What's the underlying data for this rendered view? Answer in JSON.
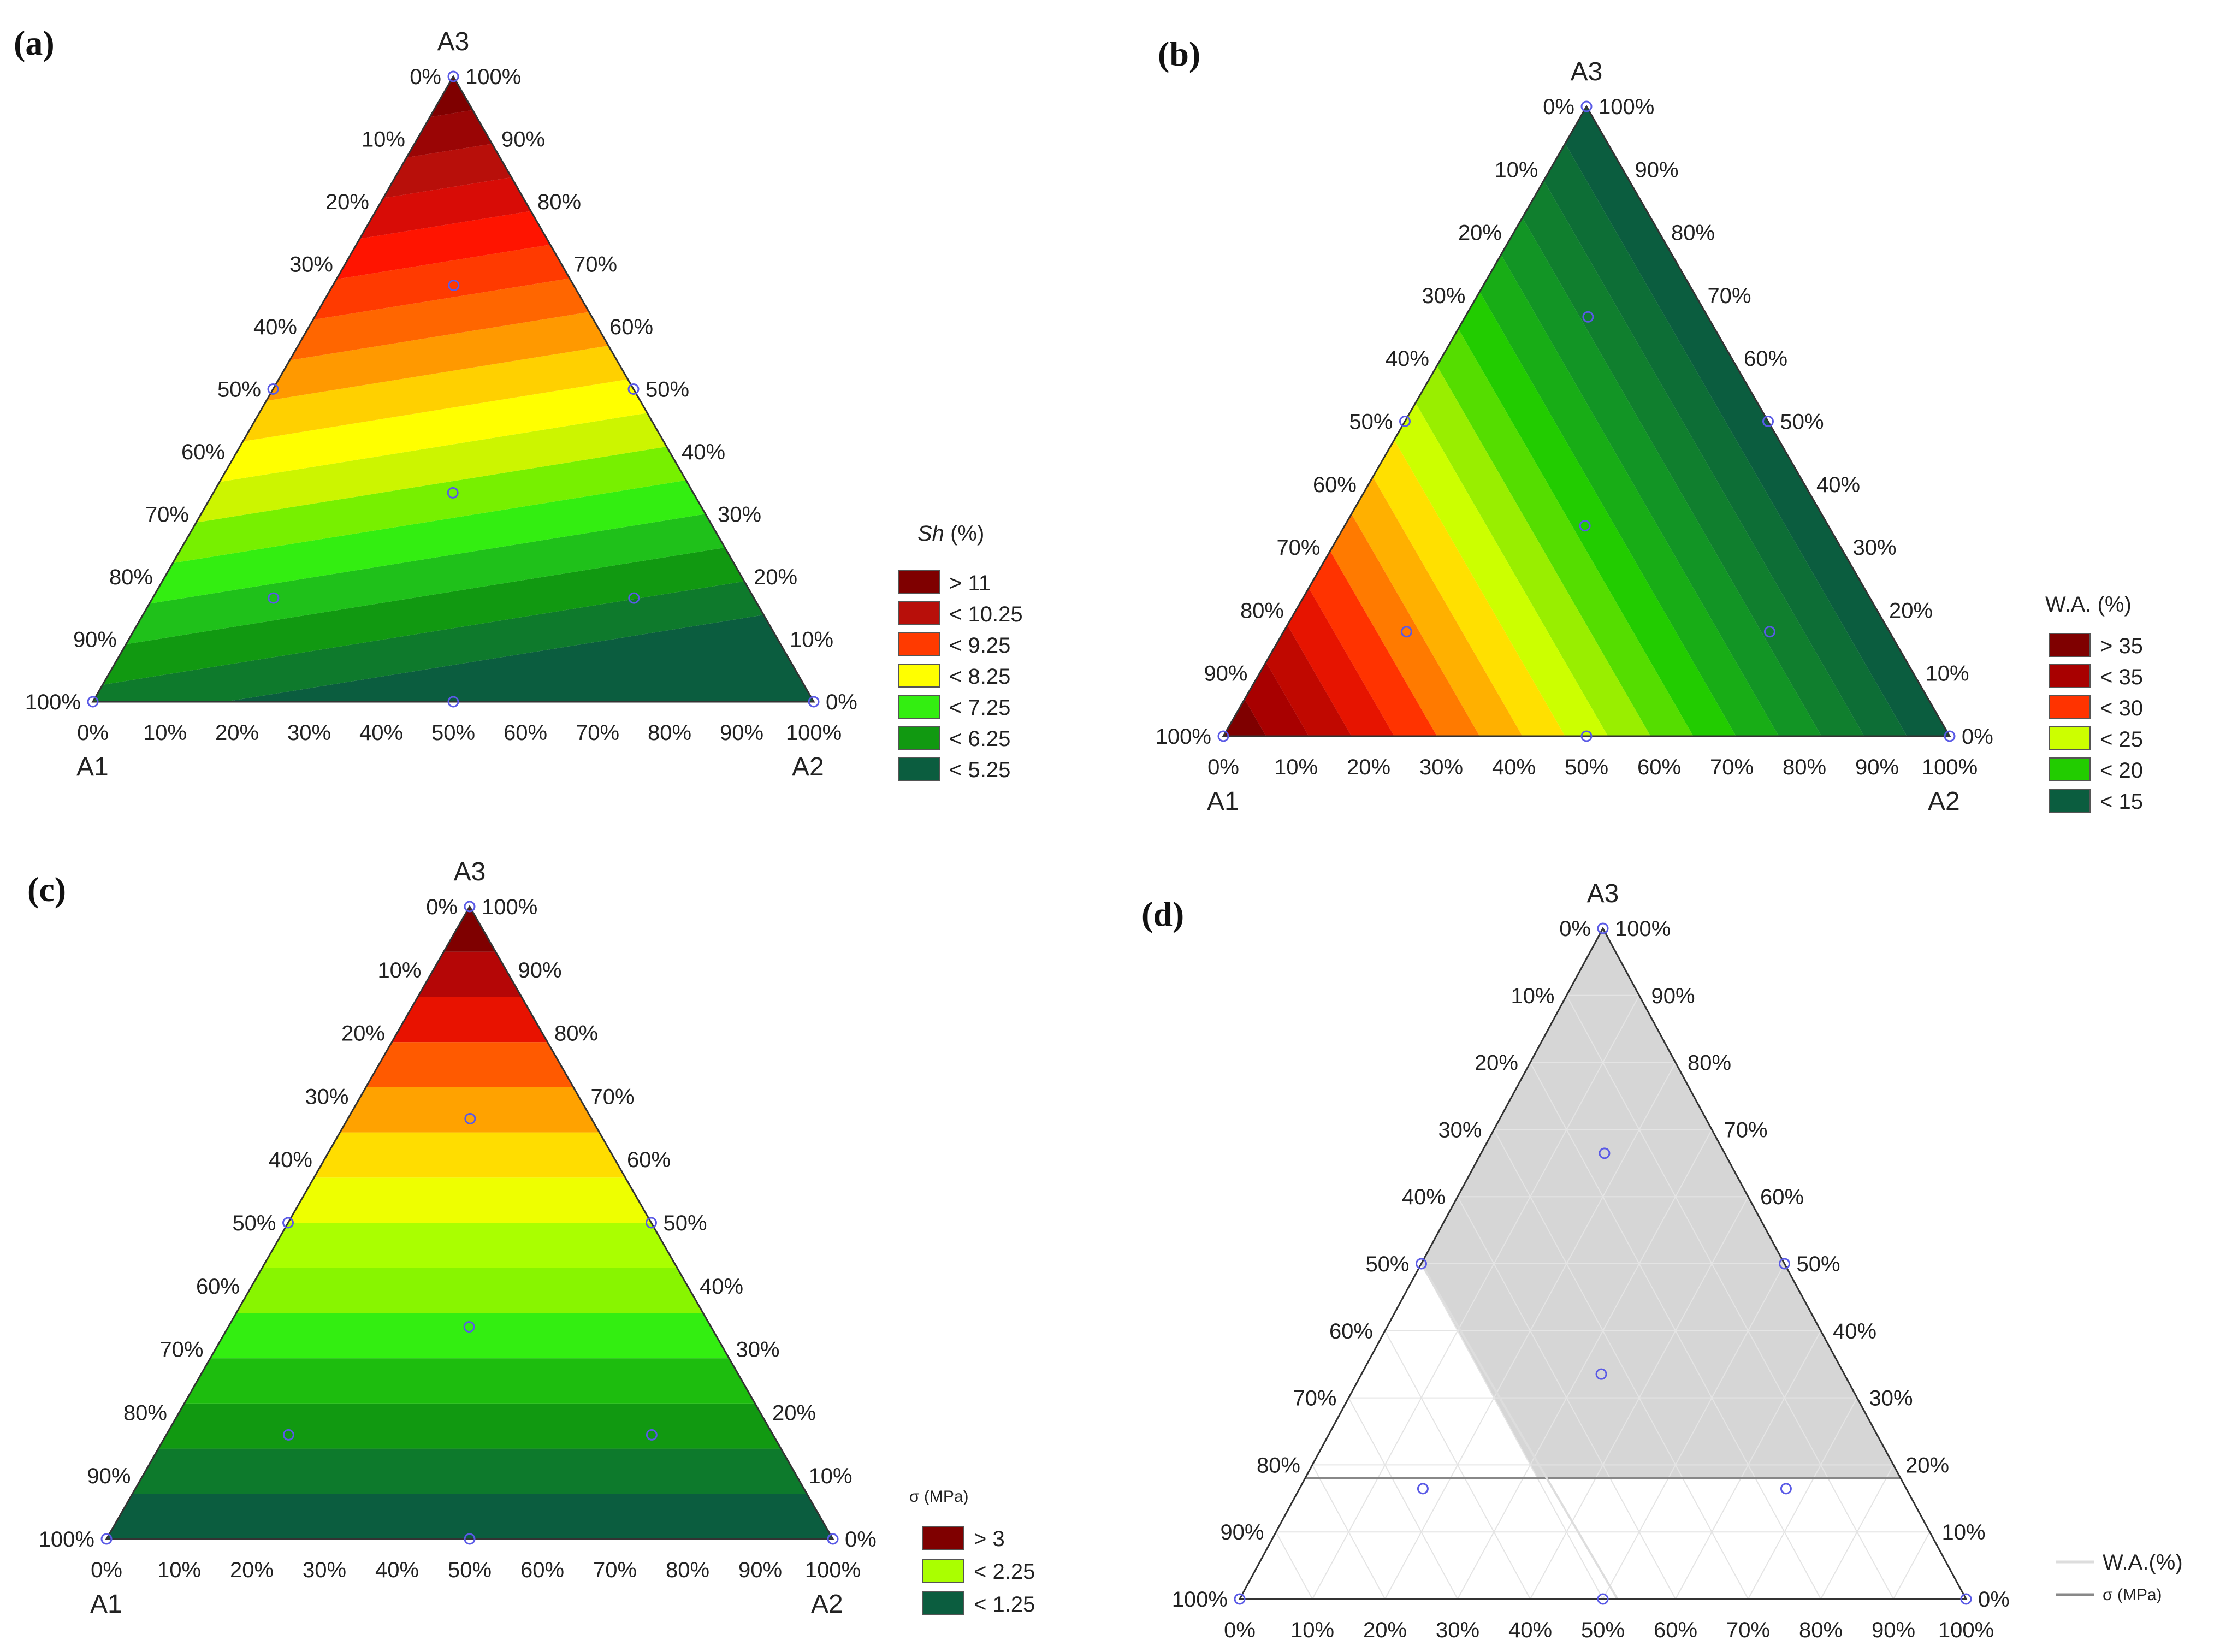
{
  "figure": {
    "vertices": {
      "left": "A1",
      "right": "A2",
      "top": "A3"
    },
    "point_color": "#5a5ae6",
    "ticks_bottom": [
      "0%",
      "10%",
      "20%",
      "30%",
      "40%",
      "50%",
      "60%",
      "70%",
      "80%",
      "90%",
      "100%"
    ],
    "ticks_left": [
      "0%",
      "10%",
      "20%",
      "30%",
      "40%",
      "50%",
      "60%",
      "70%",
      "80%",
      "90%",
      "100%"
    ],
    "ticks_right": [
      "100%",
      "90%",
      "80%",
      "70%",
      "60%",
      "50%",
      "40%",
      "30%",
      "20%",
      "10%",
      "0%"
    ]
  },
  "chart_data": [
    {
      "panel": "(a)",
      "type": "ternary-contour",
      "response_label": "Sh (%)",
      "response_label_italic": "Sh",
      "response_label_unit": "(%)",
      "legend": [
        {
          "label": "> 11",
          "color": "#7f0000"
        },
        {
          "label": "< 10.25",
          "color": "#b80f0a"
        },
        {
          "label": "< 9.25",
          "color": "#ff3a00"
        },
        {
          "label": "< 8.25",
          "color": "#ffff00"
        },
        {
          "label": "< 7.25",
          "color": "#33ee11"
        },
        {
          "label": "< 6.25",
          "color": "#119911"
        },
        {
          "label": "< 5.25",
          "color": "#0b5d3f"
        }
      ],
      "value_range": [
        4.0,
        12.0
      ],
      "gradient_direction": "increasing toward A3, slight tilt toward A1",
      "design_points": [
        [
          1,
          0,
          0
        ],
        [
          0,
          1,
          0
        ],
        [
          0,
          0,
          1
        ],
        [
          0.5,
          0.5,
          0
        ],
        [
          0.5,
          0,
          0.5
        ],
        [
          0,
          0.5,
          0.5
        ],
        [
          0.333,
          0.333,
          0.333
        ],
        [
          0.667,
          0.167,
          0.167
        ],
        [
          0.167,
          0.667,
          0.167
        ],
        [
          0.167,
          0.167,
          0.667
        ]
      ]
    },
    {
      "panel": "(b)",
      "type": "ternary-contour",
      "response_label": "W.A. (%)",
      "legend": [
        {
          "label": "> 35",
          "color": "#7f0000"
        },
        {
          "label": "< 35",
          "color": "#a80000"
        },
        {
          "label": "< 30",
          "color": "#ff3300"
        },
        {
          "label": "< 25",
          "color": "#ccff00"
        },
        {
          "label": "< 20",
          "color": "#22cc00"
        },
        {
          "label": "< 15",
          "color": "#0b5d3f"
        }
      ],
      "value_range": [
        10,
        40
      ],
      "gradient_direction": "increasing toward A1",
      "design_points": [
        [
          1,
          0,
          0
        ],
        [
          0,
          1,
          0
        ],
        [
          0,
          0,
          1
        ],
        [
          0.5,
          0.5,
          0
        ],
        [
          0.5,
          0,
          0.5
        ],
        [
          0,
          0.5,
          0.5
        ],
        [
          0.333,
          0.333,
          0.333
        ],
        [
          0.667,
          0.167,
          0.167
        ],
        [
          0.167,
          0.667,
          0.167
        ],
        [
          0.167,
          0.167,
          0.667
        ]
      ]
    },
    {
      "panel": "(c)",
      "type": "ternary-contour",
      "response_label": "σ (MPa)",
      "legend": [
        {
          "label": "> 3",
          "color": "#7f0000"
        },
        {
          "label": "< 2.25",
          "color": "#aaff00"
        },
        {
          "label": "< 1.25",
          "color": "#0b5d3f"
        }
      ],
      "value_range": [
        0.5,
        4.0
      ],
      "gradient_direction": "increasing toward A3",
      "design_points": [
        [
          1,
          0,
          0
        ],
        [
          0,
          1,
          0
        ],
        [
          0,
          0,
          1
        ],
        [
          0.5,
          0.5,
          0
        ],
        [
          0.5,
          0,
          0.5
        ],
        [
          0,
          0.5,
          0.5
        ],
        [
          0.333,
          0.333,
          0.333
        ],
        [
          0.667,
          0.167,
          0.167
        ],
        [
          0.167,
          0.667,
          0.167
        ],
        [
          0.167,
          0.167,
          0.667
        ]
      ]
    },
    {
      "panel": "(d)",
      "type": "ternary-overlay",
      "legend": [
        {
          "label": "W.A.(%)",
          "color": "#dddddd"
        },
        {
          "label": "σ (MPa)",
          "color": "#888888"
        }
      ],
      "feasible_region": {
        "color": "#d6d6d6",
        "description": "region with A3 >= 0.18 and A1 <= 0.5 (bounded by W.A. and σ contour lines)",
        "vertices_barycentric": [
          [
            0,
            0,
            1
          ],
          [
            0.5,
            0,
            0.5
          ],
          [
            0.5,
            0.32,
            0.18
          ],
          [
            0,
            0.82,
            0.18
          ]
        ]
      },
      "contour_lines": [
        {
          "name": "σ (MPa)",
          "from": [
            0.82,
            0,
            0.18
          ],
          "to": [
            0,
            0.82,
            0.18
          ]
        },
        {
          "name": "W.A.(%)",
          "from": [
            0.48,
            0.52,
            0
          ],
          "to": [
            0.5,
            0,
            0.5
          ]
        }
      ],
      "design_points": [
        [
          1,
          0,
          0
        ],
        [
          0,
          1,
          0
        ],
        [
          0,
          0,
          1
        ],
        [
          0.5,
          0.5,
          0
        ],
        [
          0.5,
          0,
          0.5
        ],
        [
          0,
          0.5,
          0.5
        ],
        [
          0.333,
          0.333,
          0.333
        ],
        [
          0.667,
          0.167,
          0.167
        ],
        [
          0.167,
          0.667,
          0.167
        ],
        [
          0.167,
          0.167,
          0.667
        ]
      ]
    }
  ]
}
